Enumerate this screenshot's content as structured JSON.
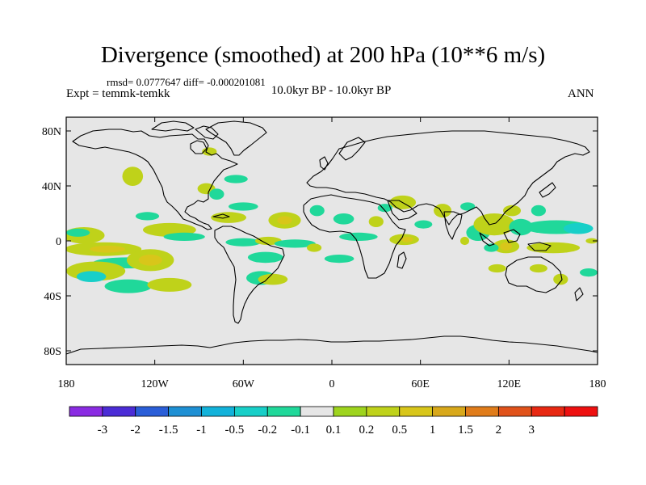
{
  "title": "Divergence (smoothed) at 200 hPa (10**6 m/s)",
  "stats": "rmsd= 0.0777647 diff= -0.000201081",
  "experiment": "Expt = temmk-temkk",
  "period": "10.0kyr BP - 10.0kyr BP",
  "season": "ANN",
  "map": {
    "projection": "cylindrical-equidistant",
    "lon_range": [
      -180,
      180
    ],
    "lat_range": [
      -90,
      90
    ],
    "background_color": "#e6e6e6",
    "coastline_color": "#000000",
    "lat_labels": [
      {
        "lat": 80,
        "label": "80N"
      },
      {
        "lat": 40,
        "label": "40N"
      },
      {
        "lat": 0,
        "label": "0"
      },
      {
        "lat": -40,
        "label": "40S"
      },
      {
        "lat": -80,
        "label": "80S"
      }
    ],
    "lon_labels": [
      {
        "lon": -180,
        "label": "180"
      },
      {
        "lon": -120,
        "label": "120W"
      },
      {
        "lon": -60,
        "label": "60W"
      },
      {
        "lon": 0,
        "label": "0"
      },
      {
        "lon": 60,
        "label": "60E"
      },
      {
        "lon": 120,
        "label": "120E"
      },
      {
        "lon": 180,
        "label": "180"
      }
    ],
    "anomalies": [
      {
        "lon": -168,
        "lat": 4,
        "rx": 14,
        "ry": 6,
        "level": 0.2
      },
      {
        "lon": -172,
        "lat": 6,
        "rx": 8,
        "ry": 3,
        "level": -0.2
      },
      {
        "lon": -155,
        "lat": -6,
        "rx": 26,
        "ry": 5,
        "level": 0.2
      },
      {
        "lon": -152,
        "lat": -6,
        "rx": 12,
        "ry": 2.5,
        "level": 0.5
      },
      {
        "lon": -138,
        "lat": -16,
        "rx": 24,
        "ry": 4,
        "level": -0.2
      },
      {
        "lon": -160,
        "lat": -22,
        "rx": 20,
        "ry": 7,
        "level": 0.2
      },
      {
        "lon": -163,
        "lat": -26,
        "rx": 10,
        "ry": 4,
        "level": -0.5
      },
      {
        "lon": -123,
        "lat": -14,
        "rx": 16,
        "ry": 8,
        "level": 0.2
      },
      {
        "lon": -123,
        "lat": -14,
        "rx": 8,
        "ry": 4,
        "level": 0.5
      },
      {
        "lon": -138,
        "lat": -33,
        "rx": 16,
        "ry": 5,
        "level": -0.2
      },
      {
        "lon": -110,
        "lat": -32,
        "rx": 15,
        "ry": 5,
        "level": 0.2
      },
      {
        "lon": -135,
        "lat": 47,
        "rx": 7,
        "ry": 7,
        "level": 0.2
      },
      {
        "lon": -125,
        "lat": 18,
        "rx": 8,
        "ry": 3,
        "level": -0.2
      },
      {
        "lon": -110,
        "lat": 8,
        "rx": 18,
        "ry": 5,
        "level": 0.2
      },
      {
        "lon": -100,
        "lat": 3,
        "rx": 14,
        "ry": 3,
        "level": -0.2
      },
      {
        "lon": -85,
        "lat": 38,
        "rx": 6,
        "ry": 4,
        "level": 0.2
      },
      {
        "lon": -78,
        "lat": 34,
        "rx": 5,
        "ry": 4,
        "level": -0.2
      },
      {
        "lon": -65,
        "lat": 45,
        "rx": 8,
        "ry": 3,
        "level": -0.2
      },
      {
        "lon": -83,
        "lat": 65,
        "rx": 5,
        "ry": 3,
        "level": 0.2
      },
      {
        "lon": -60,
        "lat": 25,
        "rx": 10,
        "ry": 3,
        "level": -0.2
      },
      {
        "lon": -70,
        "lat": 17,
        "rx": 12,
        "ry": 4,
        "level": 0.2
      },
      {
        "lon": -60,
        "lat": -1,
        "rx": 12,
        "ry": 3,
        "level": -0.2
      },
      {
        "lon": -32,
        "lat": 15,
        "rx": 11,
        "ry": 6,
        "level": 0.2
      },
      {
        "lon": -32,
        "lat": 15,
        "rx": 5,
        "ry": 3,
        "level": 0.5
      },
      {
        "lon": -43,
        "lat": 0,
        "rx": 9,
        "ry": 3,
        "level": 0.2
      },
      {
        "lon": -25,
        "lat": -2,
        "rx": 14,
        "ry": 3,
        "level": -0.2
      },
      {
        "lon": -45,
        "lat": -12,
        "rx": 12,
        "ry": 4,
        "level": -0.2
      },
      {
        "lon": -48,
        "lat": -27,
        "rx": 10,
        "ry": 5,
        "level": -0.2
      },
      {
        "lon": -40,
        "lat": -28,
        "rx": 10,
        "ry": 4,
        "level": 0.2
      },
      {
        "lon": -10,
        "lat": 22,
        "rx": 5,
        "ry": 4,
        "level": -0.2
      },
      {
        "lon": 8,
        "lat": 16,
        "rx": 7,
        "ry": 4,
        "level": -0.2
      },
      {
        "lon": 30,
        "lat": 14,
        "rx": 5,
        "ry": 4,
        "level": 0.2
      },
      {
        "lon": -12,
        "lat": -5,
        "rx": 5,
        "ry": 3,
        "level": 0.2
      },
      {
        "lon": 5,
        "lat": -13,
        "rx": 10,
        "ry": 3,
        "level": -0.2
      },
      {
        "lon": 18,
        "lat": 3,
        "rx": 13,
        "ry": 3,
        "level": -0.2
      },
      {
        "lon": 49,
        "lat": 1,
        "rx": 10,
        "ry": 4,
        "level": 0.2
      },
      {
        "lon": 51,
        "lat": 1,
        "rx": 4,
        "ry": 2,
        "level": 0.5
      },
      {
        "lon": 48,
        "lat": 28,
        "rx": 9,
        "ry": 5,
        "level": 0.2
      },
      {
        "lon": 36,
        "lat": 24,
        "rx": 5,
        "ry": 3,
        "level": -0.2
      },
      {
        "lon": 62,
        "lat": 12,
        "rx": 6,
        "ry": 3,
        "level": -0.2
      },
      {
        "lon": 75,
        "lat": 22,
        "rx": 6,
        "ry": 5,
        "level": 0.2
      },
      {
        "lon": 92,
        "lat": 25,
        "rx": 5,
        "ry": 3,
        "level": -0.2
      },
      {
        "lon": 90,
        "lat": 0,
        "rx": 3,
        "ry": 3,
        "level": 0.2
      },
      {
        "lon": 99,
        "lat": 6,
        "rx": 8,
        "ry": 6,
        "level": -0.2
      },
      {
        "lon": 110,
        "lat": 12,
        "rx": 14,
        "ry": 8,
        "level": 0.2
      },
      {
        "lon": 122,
        "lat": 22,
        "rx": 6,
        "ry": 4,
        "level": 0.2
      },
      {
        "lon": 128,
        "lat": 10,
        "rx": 8,
        "ry": 6,
        "level": -0.2
      },
      {
        "lon": 140,
        "lat": 22,
        "rx": 5,
        "ry": 4,
        "level": -0.2
      },
      {
        "lon": 152,
        "lat": 10,
        "rx": 22,
        "ry": 5,
        "level": -0.2
      },
      {
        "lon": 167,
        "lat": 9,
        "rx": 10,
        "ry": 4,
        "level": -0.5
      },
      {
        "lon": 118,
        "lat": -4,
        "rx": 9,
        "ry": 5,
        "level": 0.2
      },
      {
        "lon": 118,
        "lat": -4,
        "rx": 4,
        "ry": 3,
        "level": 0.5
      },
      {
        "lon": 108,
        "lat": -5,
        "rx": 5,
        "ry": 3,
        "level": -0.2
      },
      {
        "lon": 150,
        "lat": -5,
        "rx": 18,
        "ry": 4,
        "level": 0.2
      },
      {
        "lon": 112,
        "lat": -20,
        "rx": 6,
        "ry": 3,
        "level": 0.2
      },
      {
        "lon": 140,
        "lat": -20,
        "rx": 6,
        "ry": 3,
        "level": 0.2
      },
      {
        "lon": 155,
        "lat": -28,
        "rx": 5,
        "ry": 4,
        "level": 0.2
      },
      {
        "lon": 174,
        "lat": -23,
        "rx": 6,
        "ry": 3,
        "level": -0.2
      },
      {
        "lon": 176,
        "lat": 0,
        "rx": 4,
        "ry": 2,
        "level": 0.2
      }
    ]
  },
  "colorbar": {
    "colors": [
      "#8a2be2",
      "#4b2cd6",
      "#2a5ed8",
      "#1e90d4",
      "#12b2da",
      "#18cfc8",
      "#20d89a",
      "#e6e6e6",
      "#9ed41e",
      "#bfd21a",
      "#d8c61a",
      "#d8a81a",
      "#e07c1a",
      "#e0521a",
      "#e82812",
      "#ee1010"
    ],
    "labels": [
      "-3",
      "-2",
      "-1.5",
      "-1",
      "-0.5",
      "-0.2",
      "-0.1",
      "0.1",
      "0.2",
      "0.5",
      "1",
      "1.5",
      "2",
      "3"
    ]
  }
}
